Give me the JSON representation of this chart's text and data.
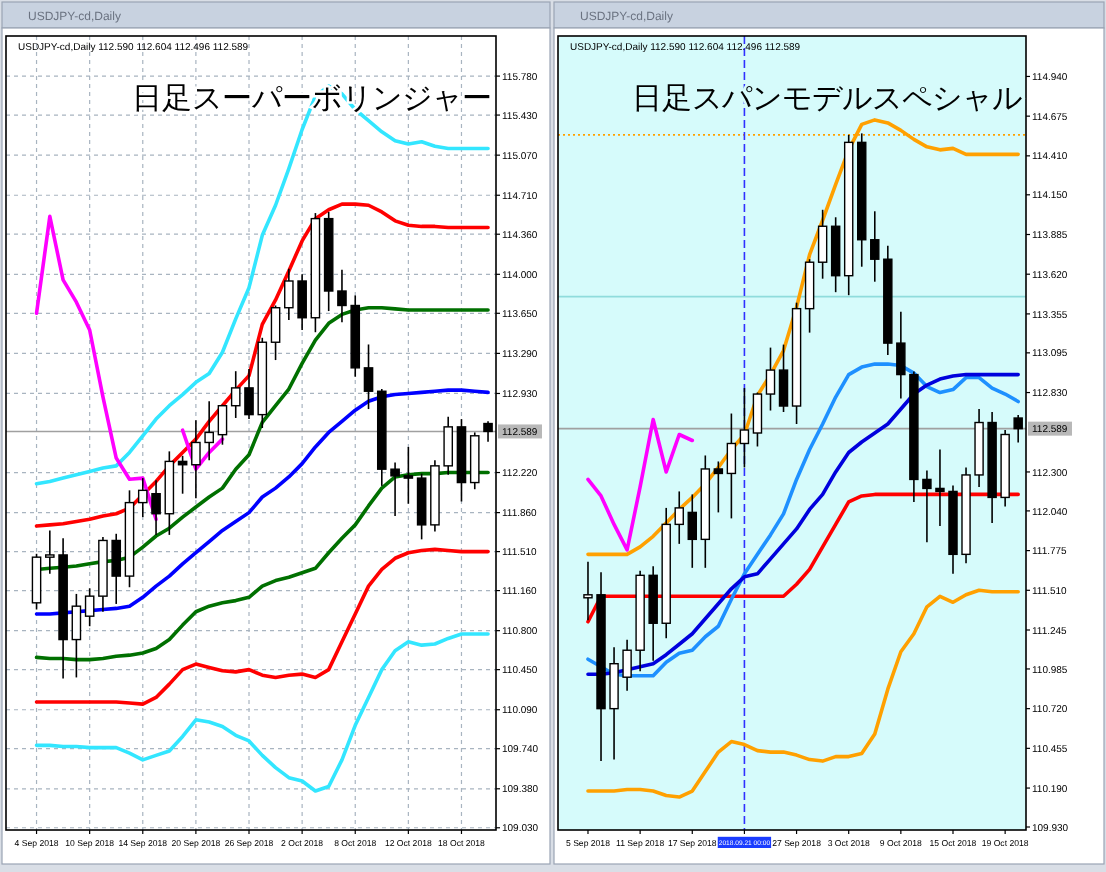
{
  "chart_data": [
    {
      "type": "candlestick",
      "title": "日足スーパーボリンジャー",
      "subtitle": "USDJPY-cd,Daily 112.590 112.604 112.496 112.589",
      "annotations": [
        "USDJPY-cd,Daily"
      ],
      "categories": [
        "4 Sep 2018",
        null,
        null,
        null,
        "10 Sep 2018",
        null,
        null,
        null,
        "14 Sep 2018",
        null,
        null,
        null,
        "20 Sep 2018",
        null,
        null,
        null,
        "26 Sep 2018",
        null,
        null,
        null,
        "2 Oct 2018",
        null,
        null,
        null,
        "8 Oct 2018",
        null,
        null,
        null,
        "12 Oct 2018",
        null,
        null,
        null,
        "18 Oct 2018",
        null,
        null
      ],
      "ohlc": [
        [
          111.05,
          111.49,
          110.99,
          111.46
        ],
        [
          111.46,
          111.7,
          111.31,
          111.48
        ],
        [
          111.48,
          111.63,
          110.37,
          110.72
        ],
        [
          110.72,
          111.13,
          110.38,
          111.02
        ],
        [
          110.93,
          111.18,
          110.84,
          111.11
        ],
        [
          111.11,
          111.64,
          110.97,
          111.61
        ],
        [
          111.61,
          111.67,
          111.04,
          111.29
        ],
        [
          111.29,
          112.06,
          111.19,
          111.95
        ],
        [
          111.95,
          112.17,
          111.82,
          112.06
        ],
        [
          112.03,
          112.15,
          111.66,
          111.85
        ],
        [
          111.85,
          112.41,
          111.66,
          112.32
        ],
        [
          112.32,
          112.37,
          112.03,
          112.29
        ],
        [
          112.29,
          112.69,
          111.99,
          112.49
        ],
        [
          112.49,
          112.86,
          112.33,
          112.58
        ],
        [
          112.56,
          112.83,
          112.47,
          112.82
        ],
        [
          112.82,
          113.13,
          112.71,
          112.98
        ],
        [
          112.98,
          113.15,
          112.7,
          112.74
        ],
        [
          112.74,
          113.43,
          112.62,
          113.39
        ],
        [
          113.39,
          113.72,
          113.23,
          113.7
        ],
        [
          113.7,
          114.05,
          113.59,
          113.94
        ],
        [
          113.94,
          114.0,
          113.5,
          113.61
        ],
        [
          113.61,
          114.55,
          113.48,
          114.5
        ],
        [
          114.5,
          114.56,
          113.67,
          113.85
        ],
        [
          113.85,
          114.04,
          113.57,
          113.72
        ],
        [
          113.72,
          113.81,
          113.08,
          113.16
        ],
        [
          113.16,
          113.37,
          112.79,
          112.95
        ],
        [
          112.95,
          112.97,
          112.1,
          112.25
        ],
        [
          112.25,
          112.31,
          111.83,
          112.19
        ],
        [
          112.19,
          112.45,
          111.94,
          112.17
        ],
        [
          112.17,
          112.21,
          111.62,
          111.75
        ],
        [
          111.75,
          112.33,
          111.69,
          112.28
        ],
        [
          112.28,
          112.72,
          112.2,
          112.63
        ],
        [
          112.63,
          112.7,
          111.96,
          112.13
        ],
        [
          112.13,
          112.58,
          112.07,
          112.55
        ],
        [
          112.66,
          112.68,
          112.496,
          112.589
        ]
      ],
      "series": [
        {
          "type": "line",
          "color": "#33e6ff",
          "values": [
            112.12,
            112.14,
            112.17,
            112.2,
            112.23,
            112.26,
            112.28,
            112.4,
            112.55,
            112.7,
            112.82,
            112.92,
            113.03,
            113.11,
            113.3,
            113.6,
            113.88,
            114.35,
            114.62,
            114.95,
            115.3,
            115.6,
            115.69,
            115.62,
            115.48,
            115.38,
            115.28,
            115.2,
            115.17,
            115.19,
            115.15,
            115.13,
            115.13,
            115.13,
            115.13
          ]
        },
        {
          "type": "line",
          "color": "#ff0000",
          "values": [
            111.74,
            111.75,
            111.76,
            111.78,
            111.8,
            111.83,
            111.85,
            111.9,
            112.02,
            112.14,
            112.28,
            112.4,
            112.52,
            112.68,
            112.82,
            112.96,
            113.09,
            113.55,
            113.77,
            114.03,
            114.3,
            114.5,
            114.58,
            114.63,
            114.63,
            114.62,
            114.56,
            114.48,
            114.44,
            114.43,
            114.43,
            114.42,
            114.42,
            114.42,
            114.42
          ]
        },
        {
          "type": "line",
          "color": "#007000",
          "values": [
            111.35,
            111.36,
            111.37,
            111.38,
            111.4,
            111.42,
            111.43,
            111.46,
            111.55,
            111.65,
            111.72,
            111.82,
            111.91,
            112.0,
            112.08,
            112.25,
            112.38,
            112.67,
            112.82,
            112.97,
            113.2,
            113.41,
            113.56,
            113.64,
            113.68,
            113.7,
            113.7,
            113.69,
            113.68,
            113.68,
            113.68,
            113.68,
            113.68,
            113.68,
            113.68
          ]
        },
        {
          "type": "line",
          "color": "#0000ff",
          "values": [
            110.95,
            110.95,
            110.96,
            110.97,
            110.98,
            110.99,
            111.0,
            111.02,
            111.1,
            111.2,
            111.29,
            111.4,
            111.5,
            111.6,
            111.7,
            111.78,
            111.86,
            112.0,
            112.08,
            112.18,
            112.3,
            112.45,
            112.58,
            112.68,
            112.78,
            112.86,
            112.9,
            112.92,
            112.93,
            112.94,
            112.95,
            112.96,
            112.96,
            112.95,
            112.94
          ]
        },
        {
          "type": "line",
          "color": "#007000",
          "values": [
            110.56,
            110.55,
            110.55,
            110.54,
            110.54,
            110.55,
            110.57,
            110.58,
            110.6,
            110.64,
            110.72,
            110.85,
            110.97,
            111.02,
            111.05,
            111.07,
            111.1,
            111.2,
            111.25,
            111.28,
            111.32,
            111.36,
            111.5,
            111.63,
            111.75,
            111.92,
            112.08,
            112.18,
            112.2,
            112.21,
            112.21,
            112.22,
            112.22,
            112.22,
            112.22
          ]
        },
        {
          "type": "line",
          "color": "#ff0000",
          "values": [
            110.16,
            110.16,
            110.16,
            110.16,
            110.16,
            110.16,
            110.16,
            110.15,
            110.14,
            110.2,
            110.32,
            110.45,
            110.5,
            110.47,
            110.44,
            110.43,
            110.45,
            110.4,
            110.38,
            110.4,
            110.41,
            110.38,
            110.45,
            110.7,
            110.95,
            111.2,
            111.35,
            111.45,
            111.5,
            111.52,
            111.53,
            111.52,
            111.51,
            111.51,
            111.51
          ]
        },
        {
          "type": "line",
          "color": "#33e6ff",
          "values": [
            109.77,
            109.77,
            109.76,
            109.76,
            109.75,
            109.75,
            109.75,
            109.7,
            109.64,
            109.68,
            109.72,
            109.85,
            110.0,
            109.98,
            109.94,
            109.86,
            109.81,
            109.68,
            109.57,
            109.48,
            109.45,
            109.36,
            109.4,
            109.64,
            109.95,
            110.2,
            110.45,
            110.62,
            110.7,
            110.67,
            110.68,
            110.73,
            110.77,
            110.77,
            110.77
          ]
        },
        {
          "type": "line",
          "color": "#ff00ff",
          "values": [
            113.65,
            114.52,
            113.95,
            113.75,
            113.5,
            112.9,
            112.35,
            112.16,
            112.17,
            111.8,
            null,
            112.6,
            112.25,
            112.4,
            112.52,
            null,
            null,
            null,
            null,
            null,
            null,
            null,
            null,
            null,
            null,
            null,
            null,
            null,
            null,
            null,
            null,
            null,
            null,
            null,
            null
          ]
        }
      ],
      "ylim": [
        109.01,
        116.14
      ],
      "yticks": [
        {
          "value": 115.78,
          "label": "115.780"
        },
        {
          "value": 115.43,
          "label": "115.430"
        },
        {
          "value": 115.07,
          "label": "115.070"
        },
        {
          "value": 114.71,
          "label": "114.710"
        },
        {
          "value": 114.36,
          "label": "114.360"
        },
        {
          "value": 114.0,
          "label": "114.000"
        },
        {
          "value": 113.65,
          "label": "113.650"
        },
        {
          "value": 113.29,
          "label": "113.290"
        },
        {
          "value": 112.93,
          "label": "112.930"
        },
        {
          "value": 112.22,
          "label": "112.220"
        },
        {
          "value": 111.86,
          "label": "111.860"
        },
        {
          "value": 111.51,
          "label": "111.510"
        },
        {
          "value": 111.16,
          "label": "111.160"
        },
        {
          "value": 110.8,
          "label": "110.800"
        },
        {
          "value": 110.45,
          "label": "110.450"
        },
        {
          "value": 110.09,
          "label": "110.090"
        },
        {
          "value": 109.74,
          "label": "109.740"
        },
        {
          "value": 109.38,
          "label": "109.380"
        },
        {
          "value": 109.03,
          "label": "109.030"
        }
      ],
      "ref_lines": [
        {
          "axis": "y",
          "value": 112.589,
          "label": "112.589",
          "color": "#a0a0a0",
          "line_style": "solid"
        }
      ],
      "grid": true
    },
    {
      "type": "candlestick",
      "title": "日足スパンモデルスペシャル",
      "subtitle": "USDJPY-cd,Daily 112.590 112.604 112.496 112.589",
      "annotations": [
        "USDJPY-cd,Daily"
      ],
      "categories": [
        "5 Sep 2018",
        null,
        null,
        null,
        "11 Sep 2018",
        null,
        null,
        null,
        "17 Sep 2018",
        null,
        null,
        null,
        "2018.09.21 00:00",
        null,
        null,
        null,
        "27 Sep 2018",
        null,
        null,
        null,
        "3 Oct 2018",
        null,
        null,
        null,
        "9 Oct 2018",
        null,
        null,
        null,
        "15 Oct 2018",
        null,
        null,
        null,
        "19 Oct 2018",
        null
      ],
      "ohlc": [
        [
          111.46,
          111.7,
          111.31,
          111.48
        ],
        [
          111.48,
          111.63,
          110.37,
          110.72
        ],
        [
          110.72,
          111.13,
          110.38,
          111.02
        ],
        [
          110.93,
          111.18,
          110.84,
          111.11
        ],
        [
          111.11,
          111.64,
          110.97,
          111.61
        ],
        [
          111.61,
          111.67,
          111.04,
          111.29
        ],
        [
          111.29,
          112.06,
          111.19,
          111.95
        ],
        [
          111.95,
          112.17,
          111.82,
          112.06
        ],
        [
          112.03,
          112.15,
          111.66,
          111.85
        ],
        [
          111.85,
          112.41,
          111.66,
          112.32
        ],
        [
          112.32,
          112.37,
          112.03,
          112.29
        ],
        [
          112.29,
          112.69,
          111.99,
          112.49
        ],
        [
          112.49,
          112.86,
          112.33,
          112.58
        ],
        [
          112.56,
          112.83,
          112.47,
          112.82
        ],
        [
          112.82,
          113.13,
          112.71,
          112.98
        ],
        [
          112.98,
          113.15,
          112.7,
          112.74
        ],
        [
          112.74,
          113.43,
          112.62,
          113.39
        ],
        [
          113.39,
          113.72,
          113.23,
          113.7
        ],
        [
          113.7,
          114.05,
          113.59,
          113.94
        ],
        [
          113.94,
          114.0,
          113.5,
          113.61
        ],
        [
          113.61,
          114.55,
          113.48,
          114.5
        ],
        [
          114.5,
          114.56,
          113.67,
          113.85
        ],
        [
          113.85,
          114.04,
          113.57,
          113.72
        ],
        [
          113.72,
          113.81,
          113.08,
          113.16
        ],
        [
          113.16,
          113.37,
          112.79,
          112.95
        ],
        [
          112.95,
          112.97,
          112.1,
          112.25
        ],
        [
          112.25,
          112.31,
          111.83,
          112.19
        ],
        [
          112.19,
          112.45,
          111.94,
          112.17
        ],
        [
          112.17,
          112.21,
          111.62,
          111.75
        ],
        [
          111.75,
          112.33,
          111.69,
          112.28
        ],
        [
          112.28,
          112.72,
          112.2,
          112.63
        ],
        [
          112.63,
          112.7,
          111.96,
          112.13
        ],
        [
          112.13,
          112.58,
          112.07,
          112.55
        ],
        [
          112.66,
          112.68,
          112.496,
          112.589
        ]
      ],
      "series": [
        {
          "type": "line",
          "color": "#ffa000",
          "values": [
            111.75,
            111.75,
            111.75,
            111.75,
            111.8,
            111.87,
            111.96,
            112.05,
            112.13,
            112.22,
            112.33,
            112.45,
            112.55,
            112.81,
            112.95,
            113.11,
            113.4,
            113.75,
            113.98,
            114.22,
            114.45,
            114.62,
            114.65,
            114.63,
            114.58,
            114.52,
            114.47,
            114.45,
            114.46,
            114.42,
            114.42,
            114.42,
            114.42,
            114.42
          ]
        },
        {
          "type": "line",
          "color": "#ffa000",
          "values": [
            110.17,
            110.17,
            110.17,
            110.18,
            110.18,
            110.17,
            110.14,
            110.13,
            110.17,
            110.3,
            110.43,
            110.5,
            110.48,
            110.44,
            110.43,
            110.43,
            110.41,
            110.38,
            110.37,
            110.4,
            110.4,
            110.42,
            110.55,
            110.85,
            111.1,
            111.22,
            111.4,
            111.47,
            111.43,
            111.48,
            111.51,
            111.5,
            111.5,
            111.5
          ]
        },
        {
          "type": "line",
          "color": "#ff0000",
          "values": [
            111.3,
            111.47,
            111.47,
            111.47,
            111.47,
            111.47,
            111.47,
            111.47,
            111.47,
            111.47,
            111.47,
            111.47,
            111.47,
            111.47,
            111.47,
            111.47,
            111.55,
            111.65,
            111.8,
            111.95,
            112.1,
            112.14,
            112.15,
            112.15,
            112.15,
            112.15,
            112.15,
            112.15,
            112.15,
            112.15,
            112.15,
            112.15,
            112.15,
            112.15
          ]
        },
        {
          "type": "line",
          "color": "#1e90ff",
          "values": [
            111.05,
            111.0,
            110.95,
            110.94,
            110.94,
            110.94,
            111.03,
            111.09,
            111.11,
            111.2,
            111.27,
            111.45,
            111.62,
            111.75,
            111.88,
            112.02,
            112.25,
            112.45,
            112.62,
            112.8,
            112.95,
            113.0,
            113.02,
            113.02,
            113.01,
            112.96,
            112.87,
            112.83,
            112.85,
            112.93,
            112.93,
            112.86,
            112.82,
            112.77
          ]
        },
        {
          "type": "line",
          "color": "#0000dd",
          "values": [
            110.95,
            110.95,
            110.96,
            110.98,
            111.0,
            111.02,
            111.08,
            111.15,
            111.22,
            111.32,
            111.42,
            111.52,
            111.6,
            111.62,
            111.72,
            111.82,
            111.92,
            112.05,
            112.15,
            112.3,
            112.43,
            112.5,
            112.56,
            112.62,
            112.72,
            112.82,
            112.88,
            112.92,
            112.94,
            112.95,
            112.95,
            112.95,
            112.95,
            112.95
          ]
        },
        {
          "type": "line",
          "color": "#ff00ff",
          "values": [
            112.25,
            112.14,
            111.95,
            111.78,
            112.2,
            112.65,
            112.3,
            112.55,
            112.51,
            null,
            null,
            null,
            null,
            null,
            null,
            null,
            null,
            null,
            null,
            null,
            null,
            null,
            null,
            null,
            null,
            null,
            null,
            null,
            null,
            null,
            null,
            null,
            null,
            null
          ]
        }
      ],
      "ylim": [
        109.91,
        115.21
      ],
      "yticks": [
        {
          "value": 114.94,
          "label": "114.940"
        },
        {
          "value": 114.675,
          "label": "114.675"
        },
        {
          "value": 114.41,
          "label": "114.410"
        },
        {
          "value": 114.15,
          "label": "114.150"
        },
        {
          "value": 113.885,
          "label": "113.885"
        },
        {
          "value": 113.62,
          "label": "113.620"
        },
        {
          "value": 113.355,
          "label": "113.355"
        },
        {
          "value": 113.095,
          "label": "113.095"
        },
        {
          "value": 112.83,
          "label": "112.830"
        },
        {
          "value": 112.3,
          "label": "112.300"
        },
        {
          "value": 112.04,
          "label": "112.040"
        },
        {
          "value": 111.775,
          "label": "111.775"
        },
        {
          "value": 111.51,
          "label": "111.510"
        },
        {
          "value": 111.245,
          "label": "111.245"
        },
        {
          "value": 110.985,
          "label": "110.985"
        },
        {
          "value": 110.72,
          "label": "110.720"
        },
        {
          "value": 110.455,
          "label": "110.455"
        },
        {
          "value": 110.19,
          "label": "110.190"
        },
        {
          "value": 109.93,
          "label": "109.930"
        }
      ],
      "ref_lines": [
        {
          "axis": "y",
          "value": 112.589,
          "label": "112.589",
          "color": "#a0a0a0",
          "line_style": "solid"
        },
        {
          "axis": "y",
          "value": 114.55,
          "color": "#ffa000",
          "line_style": "dotted"
        },
        {
          "axis": "y",
          "value": 113.47,
          "color": "#8fdcdc",
          "line_style": "solid"
        },
        {
          "axis": "x",
          "value": "2018.09.21 00:00",
          "color": "#3030ff",
          "line_style": "dashed"
        }
      ]
    }
  ]
}
